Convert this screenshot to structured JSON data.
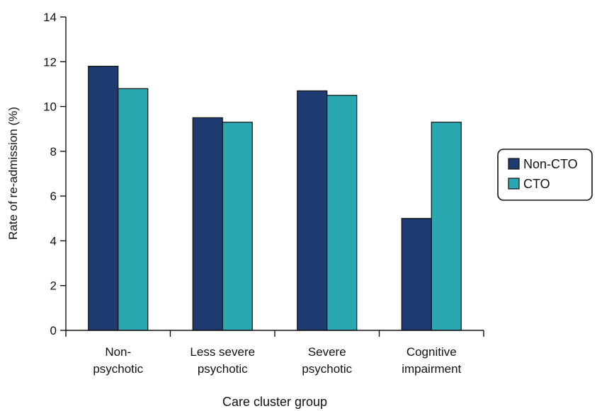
{
  "chart_data": {
    "type": "bar",
    "xlabel": "Care cluster group",
    "ylabel": "Rate of re-admission (%)",
    "ylim": [
      0,
      14
    ],
    "yticks": [
      0,
      2,
      4,
      6,
      8,
      10,
      12,
      14
    ],
    "categories": [
      [
        "Non-",
        "psychotic"
      ],
      [
        "Less severe",
        "psychotic"
      ],
      [
        "Severe",
        "psychotic"
      ],
      [
        "Cognitive",
        "impairment"
      ]
    ],
    "series": [
      {
        "name": "Non-CTO",
        "color": "#1f3c72",
        "values": [
          11.8,
          9.5,
          10.7,
          5.0
        ]
      },
      {
        "name": "CTO",
        "color": "#2aa7af",
        "values": [
          10.8,
          9.3,
          10.5,
          9.3
        ]
      }
    ],
    "legend_position": "right",
    "grid": false
  }
}
